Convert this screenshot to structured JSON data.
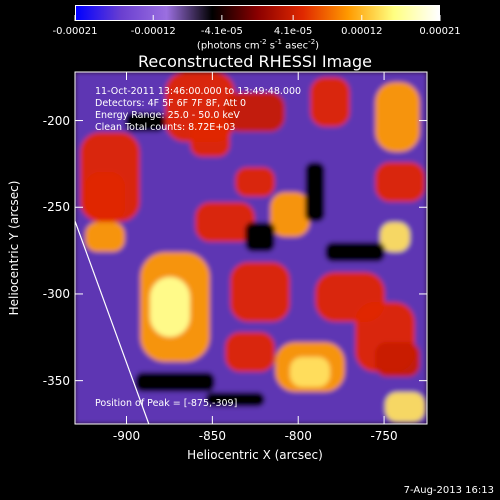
{
  "colorbar": {
    "tick_labels": [
      "-0.00021",
      "-0.00012",
      "-4.1e-05",
      "4.1e-05",
      "0.00012",
      "0.00021"
    ],
    "tick_values": [
      -0.00021,
      -0.00012,
      -4.1e-05,
      4.1e-05,
      0.00012,
      0.00021
    ],
    "range": [
      -0.00021,
      0.00021
    ],
    "unit_label": "(photons cm-2 s-1 asec-2)"
  },
  "title": "Reconstructed RHESSI Image",
  "axes": {
    "xlabel": "Heliocentric X (arcsec)",
    "ylabel": "Heliocentric Y (arcsec)",
    "x_range": [
      -930,
      -725
    ],
    "y_range": [
      -375,
      -172
    ],
    "x_ticks": [
      -900,
      -850,
      -800,
      -750
    ],
    "x_tick_labels": [
      "-900",
      "-850",
      "-800",
      "-750"
    ],
    "y_ticks": [
      -350,
      -300,
      -250,
      -200
    ],
    "y_tick_labels": [
      "-350",
      "-300",
      "-250",
      "-200"
    ]
  },
  "info": {
    "time_range": "11-Oct-2011 13:46:00.000 to 13:49:48.000",
    "detectors": "Detectors: 4F 5F 6F 7F 8F, Att 0",
    "energy_range": "Energy Range: 25.0 - 50.0 keV",
    "method": "Clean     Total counts: 8.72E+03",
    "peak": "Position of Peak = [-875,-309]"
  },
  "peak_position": [
    -875,
    -309
  ],
  "limb_line": {
    "top": [
      -930,
      -258
    ],
    "bottom": [
      -887,
      -375
    ]
  },
  "date_stamp": "7-Aug-2013 16:13",
  "colors": {
    "colormap": [
      "#0000ff",
      "#6a3fd0",
      "#9b6fe0",
      "#000000",
      "#8a0000",
      "#e02800",
      "#ff9a00",
      "#ffff80",
      "#ffffff"
    ]
  }
}
